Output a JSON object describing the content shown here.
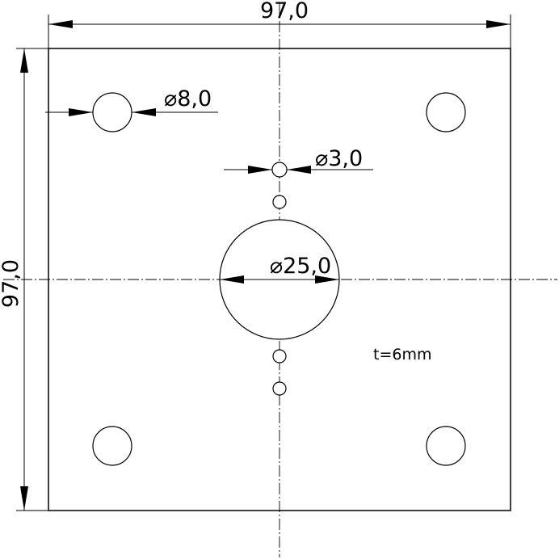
{
  "plate": {
    "width_label": "97,0",
    "height_label": "97,0",
    "thickness_note": "t=6mm"
  },
  "holes": {
    "mounting_diameter_label": "⌀8,0",
    "small_diameter_label": "⌀3,0",
    "center_diameter_label": "⌀25,0"
  },
  "colors": {
    "line": "#000000",
    "background": "#ffffff"
  }
}
